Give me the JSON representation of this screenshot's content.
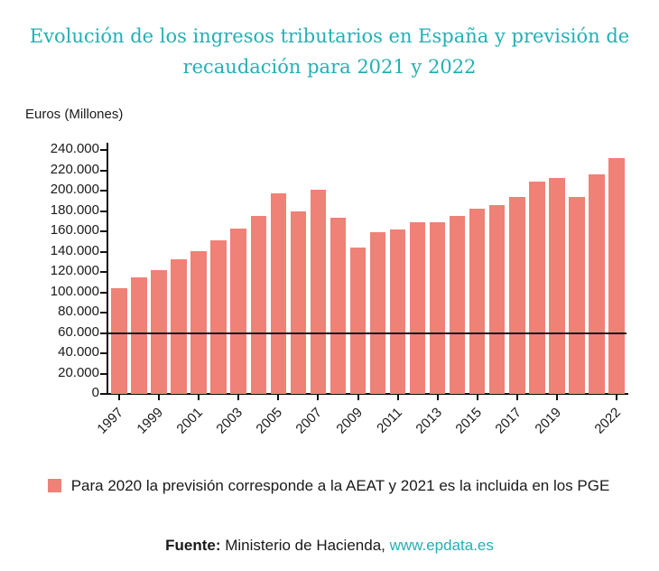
{
  "colors": {
    "accent_teal": "#23b0b4",
    "bar_fill": "#ef8176",
    "axis": "#111111",
    "text": "#1a1a1a"
  },
  "title": "Evolución de los ingresos tributarios en España y previsión de recaudación para 2021 y 2022",
  "ylabel": "Euros (Millones)",
  "chart_data": {
    "type": "bar",
    "title": "Evolución de los ingresos tributarios en España y previsión de recaudación para 2021 y 2022",
    "ylabel": "Euros (Millones)",
    "xlabel": "",
    "x": [
      "1997",
      "1998",
      "1999",
      "2000",
      "2001",
      "2002",
      "2003",
      "2004",
      "2005",
      "2006",
      "2007",
      "2008",
      "2009",
      "2010",
      "2011",
      "2012",
      "2013",
      "2014",
      "2015",
      "2016",
      "2017",
      "2018",
      "2019",
      "2020",
      "2021",
      "2022"
    ],
    "values": [
      104000,
      115000,
      122000,
      132000,
      140500,
      151000,
      163000,
      175500,
      197000,
      179500,
      200500,
      173500,
      144000,
      159500,
      162000,
      168500,
      169000,
      175000,
      182000,
      186200,
      194000,
      208700,
      212800,
      194000,
      215700,
      232300
    ],
    "ylim": [
      0,
      240000
    ],
    "ytick_step": 20000,
    "x_tick_labels": [
      "1997",
      "1999",
      "2001",
      "2003",
      "2005",
      "2007",
      "2009",
      "2011",
      "2013",
      "2015",
      "2017",
      "2019",
      "2022"
    ],
    "grid": false,
    "legend_position": "bottom",
    "reference_line_y": 60000,
    "bar_color": "#ef8176"
  },
  "legend": {
    "swatch_color": "#ef8176",
    "text": "Para 2020 la previsión corresponde a la AEAT y 2021 es la incluida en los PGE"
  },
  "footer": {
    "source_label": "Fuente:",
    "source_text": " Ministerio de Hacienda, ",
    "link": "www.epdata.es"
  }
}
